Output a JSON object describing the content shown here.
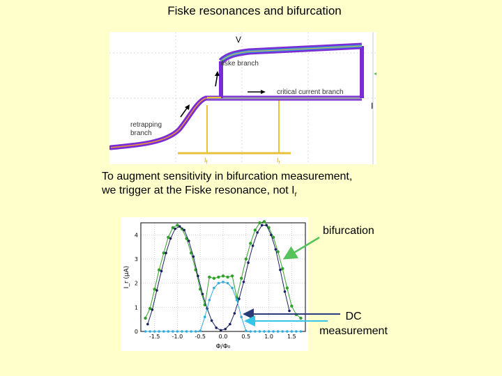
{
  "slide": {
    "title": "Fiske resonances and bifurcation",
    "note_line1": "To augment sensitivity in bifurcation measurement,",
    "note_line2_prefix": "we trigger at the Fiske resonance, not I",
    "note_line2_sub": "r"
  },
  "iv_plot": {
    "label_v": "V",
    "label_i": "I",
    "label_fiske": "fiske branch",
    "label_critical": "critical current branch",
    "label_retrap_1": "retrapping",
    "label_retrap_2": "branch",
    "label_i1": "I",
    "label_i1_sub": "f",
    "label_i2": "I",
    "label_i2_sub": "r",
    "colors": {
      "trace": "#7a2bd6",
      "fiske": "#3a8fd9",
      "flat": "#9a9aa8",
      "hist": "#e8c23a"
    }
  },
  "annotations": {
    "bifurcation": "bifurcation",
    "dc_line1": "DC",
    "dc_line2": "measurement",
    "colors": {
      "arrow_bif": "#55c25b",
      "arrow_dc_dark": "#2a3a7a",
      "arrow_dc_light": "#33c6e6"
    }
  },
  "chart_data": {
    "type": "scatter",
    "title": "",
    "xlabel": "Φ/Φ₀",
    "ylabel": "I_r (μA)",
    "xlim": [
      -1.8,
      1.8
    ],
    "ylim": [
      0,
      4.5
    ],
    "xticks": [
      -1.5,
      -1.0,
      -0.5,
      0.0,
      0.5,
      1.0,
      1.5
    ],
    "xtick_labels": [
      "-1.5",
      "-1.0",
      "-0.5",
      "0.0",
      "0.5",
      "1.0",
      "1.5"
    ],
    "yticks": [
      0,
      1,
      2,
      3,
      4
    ],
    "ytick_labels": [
      "0",
      "1",
      "2",
      "3",
      "4"
    ],
    "grid": true,
    "series": [
      {
        "key": "bifurcation",
        "color": "#33a02c",
        "x": [
          -1.7,
          -1.6,
          -1.5,
          -1.4,
          -1.3,
          -1.2,
          -1.1,
          -1.0,
          -0.9,
          -0.8,
          -0.7,
          -0.6,
          -0.5,
          -0.4,
          -0.3,
          -0.2,
          -0.1,
          0.0,
          0.1,
          0.2,
          0.3,
          0.4,
          0.5,
          0.6,
          0.7,
          0.8,
          0.9,
          1.0,
          1.1,
          1.2,
          1.3,
          1.4,
          1.5,
          1.6,
          1.7
        ],
        "y": [
          0.55,
          0.95,
          1.75,
          2.55,
          3.25,
          3.9,
          4.3,
          4.4,
          4.25,
          3.85,
          3.25,
          2.55,
          1.75,
          1.1,
          2.25,
          2.2,
          2.25,
          2.3,
          2.25,
          2.3,
          1.4,
          2.2,
          3.0,
          3.65,
          4.2,
          4.5,
          4.55,
          4.3,
          3.9,
          3.3,
          2.6,
          1.8,
          1.05,
          0.7,
          0.55
        ]
      },
      {
        "key": "dc_dark",
        "color": "#1a2060",
        "x": [
          -1.65,
          -1.55,
          -1.45,
          -1.35,
          -1.25,
          -1.15,
          -1.05,
          -0.95,
          -0.85,
          -0.75,
          -0.65,
          -0.55,
          -0.45,
          -0.35,
          -0.25,
          -0.15,
          -0.05,
          0.05,
          0.15,
          0.25,
          0.35,
          0.45,
          0.55,
          0.65,
          0.75,
          0.85,
          0.95,
          1.05,
          1.15,
          1.25,
          1.35,
          1.45
        ],
        "y": [
          0.3,
          0.9,
          1.7,
          2.5,
          3.25,
          3.85,
          4.25,
          4.35,
          4.2,
          3.75,
          3.1,
          2.3,
          1.55,
          0.95,
          0.45,
          0.15,
          0.05,
          0.1,
          0.3,
          0.75,
          1.35,
          2.05,
          2.85,
          3.55,
          4.1,
          4.4,
          4.4,
          4.0,
          3.4,
          2.55,
          1.65,
          0.85
        ]
      },
      {
        "key": "dc_light",
        "color": "#33a9d8",
        "x": [
          -1.7,
          -1.6,
          -1.5,
          -1.4,
          -1.3,
          -1.2,
          -1.1,
          -1.0,
          -0.9,
          -0.8,
          -0.7,
          -0.6,
          -0.5,
          -0.4,
          -0.3,
          -0.2,
          -0.1,
          0.0,
          0.1,
          0.2,
          0.3,
          0.4,
          0.5,
          0.6,
          0.7,
          0.8,
          0.9,
          1.0,
          1.1,
          1.2,
          1.3,
          1.4,
          1.5,
          1.6,
          1.7
        ],
        "y": [
          0,
          0,
          0,
          0,
          0,
          0,
          0,
          0,
          0,
          0,
          0,
          0,
          0.02,
          0.6,
          1.3,
          1.8,
          2.0,
          2.05,
          2.0,
          1.8,
          1.3,
          0.6,
          0.02,
          0,
          0,
          0,
          0,
          0,
          0,
          0,
          0,
          0,
          0,
          0,
          0
        ]
      }
    ]
  }
}
